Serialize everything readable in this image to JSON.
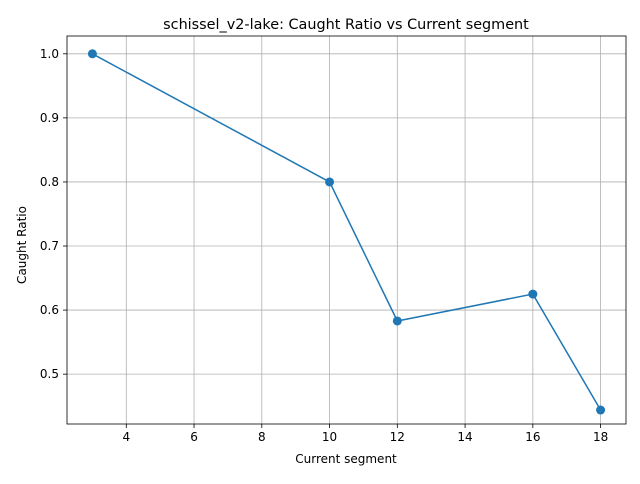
{
  "chart_data": {
    "type": "line",
    "title": "schissel_v2-lake: Caught Ratio vs Current segment",
    "xlabel": "Current segment",
    "ylabel": "Caught Ratio",
    "x": [
      3,
      10,
      12,
      16,
      18
    ],
    "series": [
      {
        "values": [
          1.0,
          0.8,
          0.583,
          0.625,
          0.444
        ]
      }
    ],
    "xlim": [
      2.25,
      18.75
    ],
    "ylim": [
      0.4222,
      1.0278
    ],
    "xticks": [
      4,
      6,
      8,
      10,
      12,
      14,
      16,
      18
    ],
    "yticks": [
      0.5,
      0.6,
      0.7,
      0.8,
      0.9,
      1.0
    ],
    "ytick_labels": [
      "0.5",
      "0.6",
      "0.7",
      "0.8",
      "0.9",
      "1.0"
    ],
    "grid": true,
    "line_color": "#1f77b4",
    "marker": "circle"
  }
}
